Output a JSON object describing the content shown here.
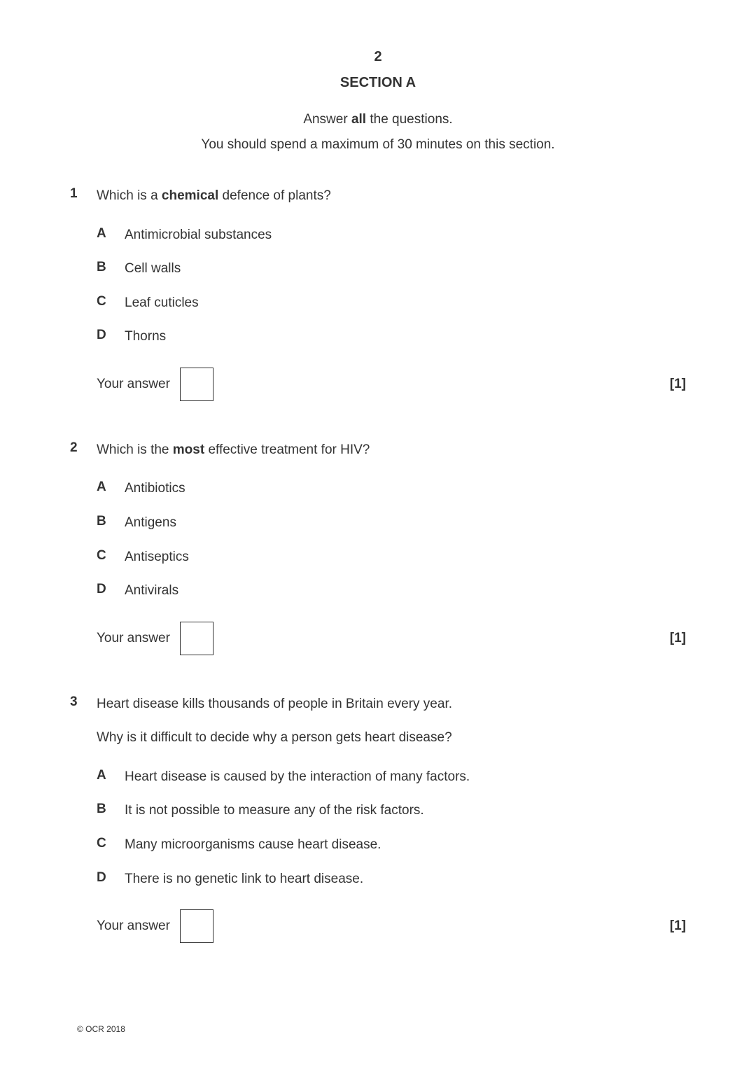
{
  "page_number": "2",
  "section_title": "SECTION A",
  "instruction1_pre": "Answer ",
  "instruction1_bold": "all",
  "instruction1_post": " the questions.",
  "instruction2": "You should spend a maximum of 30 minutes on this section.",
  "questions": [
    {
      "number": "1",
      "text_pre": "Which is a ",
      "text_bold": "chemical",
      "text_post": " defence of plants?",
      "extra_lines": [],
      "options": [
        {
          "label": "A",
          "text": "Antimicrobial substances"
        },
        {
          "label": "B",
          "text": "Cell walls"
        },
        {
          "label": "C",
          "text": "Leaf cuticles"
        },
        {
          "label": "D",
          "text": "Thorns"
        }
      ],
      "answer_label": "Your answer",
      "marks": "[1]"
    },
    {
      "number": "2",
      "text_pre": "Which is the ",
      "text_bold": "most",
      "text_post": " effective treatment for HIV?",
      "extra_lines": [],
      "options": [
        {
          "label": "A",
          "text": "Antibiotics"
        },
        {
          "label": "B",
          "text": "Antigens"
        },
        {
          "label": "C",
          "text": "Antiseptics"
        },
        {
          "label": "D",
          "text": "Antivirals"
        }
      ],
      "answer_label": "Your answer",
      "marks": "[1]"
    },
    {
      "number": "3",
      "text_pre": "Heart disease kills thousands of people in Britain every year.",
      "text_bold": "",
      "text_post": "",
      "extra_lines": [
        "Why is it difficult to decide why a person gets heart disease?"
      ],
      "options": [
        {
          "label": "A",
          "text": "Heart disease is caused by the interaction of many factors."
        },
        {
          "label": "B",
          "text": "It is not possible to measure any of the risk factors."
        },
        {
          "label": "C",
          "text": "Many microorganisms cause heart disease."
        },
        {
          "label": "D",
          "text": "There is no genetic link to heart disease."
        }
      ],
      "answer_label": "Your answer",
      "marks": "[1]"
    }
  ],
  "copyright": "© OCR 2018"
}
